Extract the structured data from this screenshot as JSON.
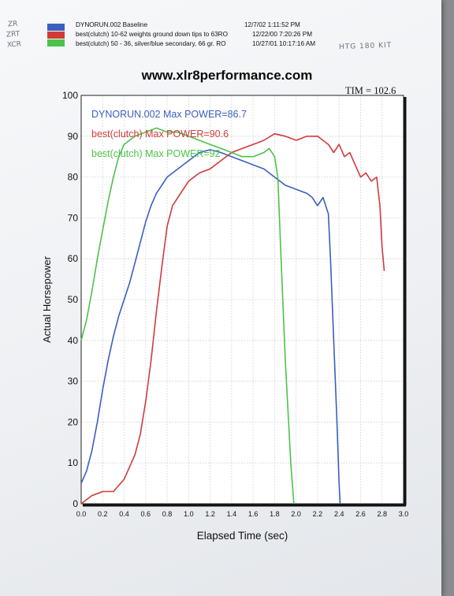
{
  "legend": [
    {
      "label": "DYNORUN.002   Baseline",
      "timestamp": "12/7/02 1:11:52 PM",
      "color": "#3a5fbf"
    },
    {
      "label": "best(clutch)   10-62 weights  ground down tips to 63RO",
      "timestamp": "12/22/00 7:20:26 PM",
      "color": "#d13a3a"
    },
    {
      "label": "best(clutch)   50 - 36, silver/blue secondary, 66 gr.  RO",
      "timestamp": "10/27/01 10:17:16 AM",
      "color": "#4cc24a"
    }
  ],
  "handwritten": {
    "side_labels": [
      "ZR",
      "ZRT",
      "XCR"
    ],
    "note": "HTG 180 KIT"
  },
  "website": "www.xlr8performance.com",
  "tim": "TIM = 102.6",
  "chart_data": {
    "type": "line",
    "xlabel": "Elapsed Time (sec)",
    "ylabel": "Actual Horsepower",
    "xlim": [
      0,
      3.0
    ],
    "ylim": [
      0,
      100
    ],
    "xticks": [
      "0.0",
      "0.2",
      "0.4",
      "0.6",
      "0.8",
      "1.0",
      "1.2",
      "1.4",
      "1.6",
      "1.8",
      "2.0",
      "2.2",
      "2.4",
      "2.6",
      "2.8",
      "3.0"
    ],
    "yticks": [
      "0",
      "10",
      "20",
      "30",
      "40",
      "50",
      "60",
      "70",
      "80",
      "90",
      "100"
    ],
    "grid": true,
    "annotations": [
      {
        "text": "DYNORUN.002  Max POWER=86.7",
        "color": "#3a5fbf"
      },
      {
        "text": "best(clutch)  Max POWER=90.6",
        "color": "#d13a3a"
      },
      {
        "text": "best(clutch)  Max POWER=92",
        "color": "#4cc24a"
      }
    ],
    "series": [
      {
        "name": "DYNORUN.002",
        "color": "#3a5fbf",
        "points": [
          [
            0.0,
            5
          ],
          [
            0.05,
            8
          ],
          [
            0.1,
            13
          ],
          [
            0.15,
            20
          ],
          [
            0.2,
            28
          ],
          [
            0.25,
            35
          ],
          [
            0.3,
            41
          ],
          [
            0.35,
            46
          ],
          [
            0.4,
            50
          ],
          [
            0.45,
            54
          ],
          [
            0.5,
            59
          ],
          [
            0.55,
            64
          ],
          [
            0.6,
            69
          ],
          [
            0.65,
            73
          ],
          [
            0.7,
            76
          ],
          [
            0.75,
            78
          ],
          [
            0.8,
            80
          ],
          [
            0.85,
            81
          ],
          [
            0.9,
            82
          ],
          [
            1.0,
            84
          ],
          [
            1.1,
            86
          ],
          [
            1.2,
            86.7
          ],
          [
            1.3,
            86
          ],
          [
            1.4,
            85
          ],
          [
            1.5,
            84
          ],
          [
            1.6,
            83
          ],
          [
            1.7,
            82
          ],
          [
            1.8,
            80
          ],
          [
            1.9,
            78
          ],
          [
            2.0,
            77
          ],
          [
            2.1,
            76
          ],
          [
            2.15,
            75
          ],
          [
            2.2,
            73
          ],
          [
            2.25,
            75
          ],
          [
            2.3,
            71
          ],
          [
            2.32,
            60
          ],
          [
            2.35,
            40
          ],
          [
            2.38,
            20
          ],
          [
            2.4,
            5
          ],
          [
            2.41,
            0
          ]
        ]
      },
      {
        "name": "best(clutch) 10-62 weights",
        "color": "#d13a3a",
        "points": [
          [
            0.0,
            0
          ],
          [
            0.1,
            2
          ],
          [
            0.2,
            3
          ],
          [
            0.3,
            3
          ],
          [
            0.4,
            6
          ],
          [
            0.5,
            12
          ],
          [
            0.55,
            17
          ],
          [
            0.6,
            25
          ],
          [
            0.65,
            35
          ],
          [
            0.7,
            47
          ],
          [
            0.75,
            58
          ],
          [
            0.8,
            68
          ],
          [
            0.85,
            73
          ],
          [
            0.9,
            75
          ],
          [
            1.0,
            79
          ],
          [
            1.1,
            81
          ],
          [
            1.2,
            82
          ],
          [
            1.3,
            84
          ],
          [
            1.4,
            86
          ],
          [
            1.5,
            87
          ],
          [
            1.6,
            88
          ],
          [
            1.7,
            89
          ],
          [
            1.8,
            90.6
          ],
          [
            1.9,
            90
          ],
          [
            2.0,
            89
          ],
          [
            2.1,
            90
          ],
          [
            2.2,
            90
          ],
          [
            2.3,
            88
          ],
          [
            2.35,
            86
          ],
          [
            2.4,
            88
          ],
          [
            2.45,
            85
          ],
          [
            2.5,
            86
          ],
          [
            2.55,
            83
          ],
          [
            2.6,
            80
          ],
          [
            2.65,
            81
          ],
          [
            2.7,
            79
          ],
          [
            2.75,
            80
          ],
          [
            2.78,
            73
          ],
          [
            2.8,
            63
          ],
          [
            2.82,
            57
          ]
        ]
      },
      {
        "name": "best(clutch) 50 - 36",
        "color": "#4cc24a",
        "points": [
          [
            0.0,
            40
          ],
          [
            0.05,
            45
          ],
          [
            0.1,
            52
          ],
          [
            0.15,
            60
          ],
          [
            0.2,
            67
          ],
          [
            0.25,
            74
          ],
          [
            0.3,
            80
          ],
          [
            0.35,
            85
          ],
          [
            0.4,
            88
          ],
          [
            0.45,
            89
          ],
          [
            0.5,
            90
          ],
          [
            0.6,
            91
          ],
          [
            0.7,
            92
          ],
          [
            0.8,
            91
          ],
          [
            0.9,
            91
          ],
          [
            1.0,
            90
          ],
          [
            1.1,
            89
          ],
          [
            1.2,
            88
          ],
          [
            1.3,
            87
          ],
          [
            1.4,
            86
          ],
          [
            1.5,
            85
          ],
          [
            1.6,
            85
          ],
          [
            1.7,
            86
          ],
          [
            1.75,
            87
          ],
          [
            1.8,
            85
          ],
          [
            1.83,
            80
          ],
          [
            1.86,
            60
          ],
          [
            1.9,
            35
          ],
          [
            1.95,
            10
          ],
          [
            1.98,
            0
          ]
        ]
      }
    ]
  }
}
